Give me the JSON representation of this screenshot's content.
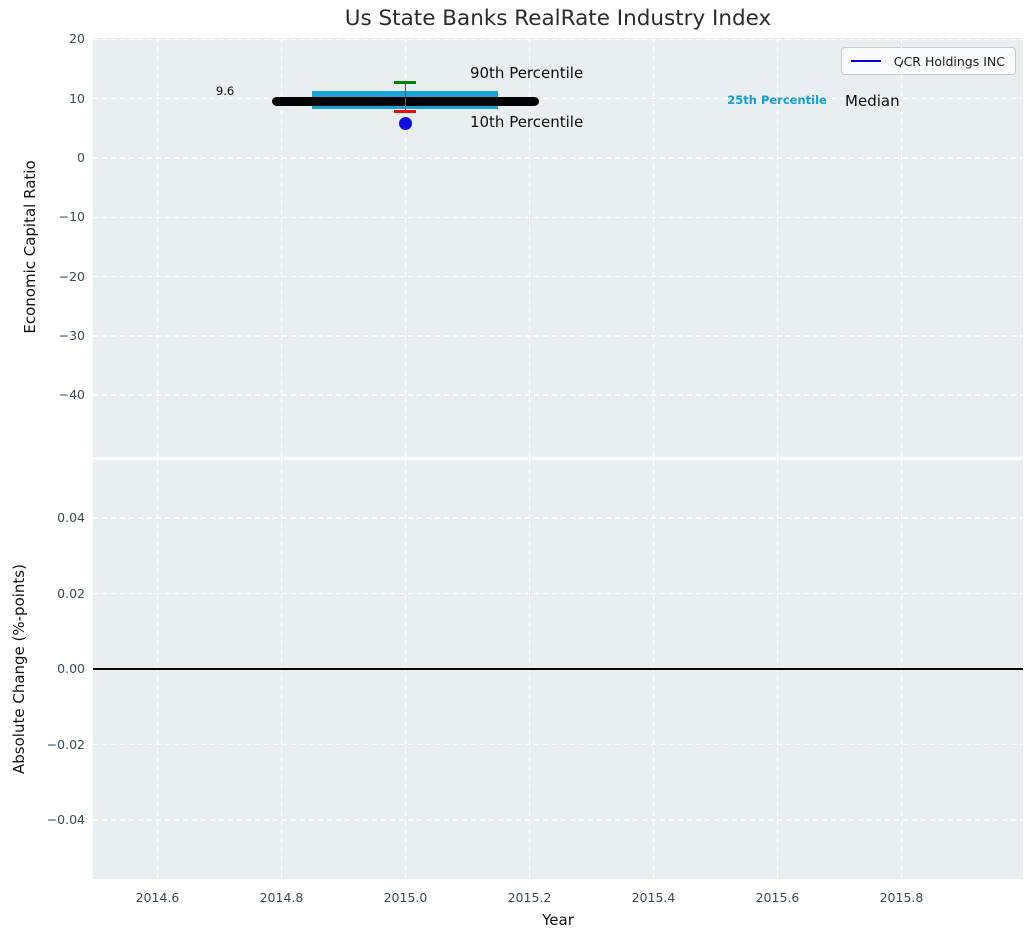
{
  "title": "Us State Banks RealRate Industry Index",
  "legend": {
    "label": "QCR Holdings INC",
    "line_color": "#0000e0"
  },
  "colors": {
    "plot_background": "#e9eef0",
    "gridline": "#ffffff",
    "tick_label": "#3a4a5a",
    "median": "#000000",
    "percentile_band": "#19a3d6",
    "p90_cap": "#078007",
    "p10_cap": "#ea0b0b",
    "errorbar_line": "#555555",
    "company": "#0f0fe0",
    "zero_line": "#000000"
  },
  "chart_data": {
    "type": "line",
    "title": "Us State Banks RealRate Industry Index",
    "xlabel": "Year",
    "xlim": [
      2014.496,
      2015.996
    ],
    "xticks": [
      2014.6,
      2014.8,
      2015.0,
      2015.2,
      2015.4,
      2015.6,
      2015.8
    ],
    "grid": "white dashed on light gray",
    "legend_position": "upper right",
    "top_panel": {
      "ylabel": "Economic Capital Ratio",
      "ylim": [
        -50.45,
        20.25
      ],
      "yticks": [
        20,
        10,
        0,
        -10,
        -20,
        -30,
        -40
      ],
      "median": {
        "value": 9.6,
        "x_start": 2014.79,
        "x_end": 2015.21
      },
      "percentile_band": {
        "value": 9.8,
        "x_start": 2014.85,
        "x_end": 2015.15,
        "label": "25th Percentile"
      },
      "error_bar": {
        "x": 2015.0,
        "p90": 12.66,
        "p10": 7.8,
        "p90_label": "90th Percentile",
        "p10_label": "10th Percentile"
      },
      "series": [
        {
          "name": "QCR Holdings INC",
          "x": [
            2015.0
          ],
          "y": [
            5.8
          ]
        }
      ],
      "annotations": [
        {
          "text": "9.6",
          "x": 2014.709,
          "y": 11.3,
          "ha": "center",
          "cls": "ann-small",
          "name": "annotation-median-value"
        },
        {
          "text": "90th Percentile",
          "x": 2015.104,
          "y": 14.35,
          "ha": "left",
          "cls": "ann-large",
          "name": "annotation-90th-percentile"
        },
        {
          "text": "10th Percentile",
          "x": 2015.104,
          "y": 6.05,
          "ha": "left",
          "cls": "ann-large",
          "name": "annotation-10th-percentile"
        },
        {
          "text": "25th Percentile",
          "x": 2015.519,
          "y": 9.8,
          "ha": "left",
          "cls": "ann-cyan",
          "name": "annotation-25th-percentile"
        },
        {
          "text": "Median",
          "x": 2015.709,
          "y": 9.6,
          "ha": "left",
          "cls": "ann-large",
          "name": "annotation-median"
        }
      ]
    },
    "bottom_panel": {
      "ylabel": "Absolute Change (%-points)",
      "ylim": [
        -0.0556,
        0.0554
      ],
      "yticks": [
        0.04,
        0.02,
        0.0,
        -0.02,
        -0.04
      ],
      "zero_line": 0.0,
      "series": []
    }
  }
}
